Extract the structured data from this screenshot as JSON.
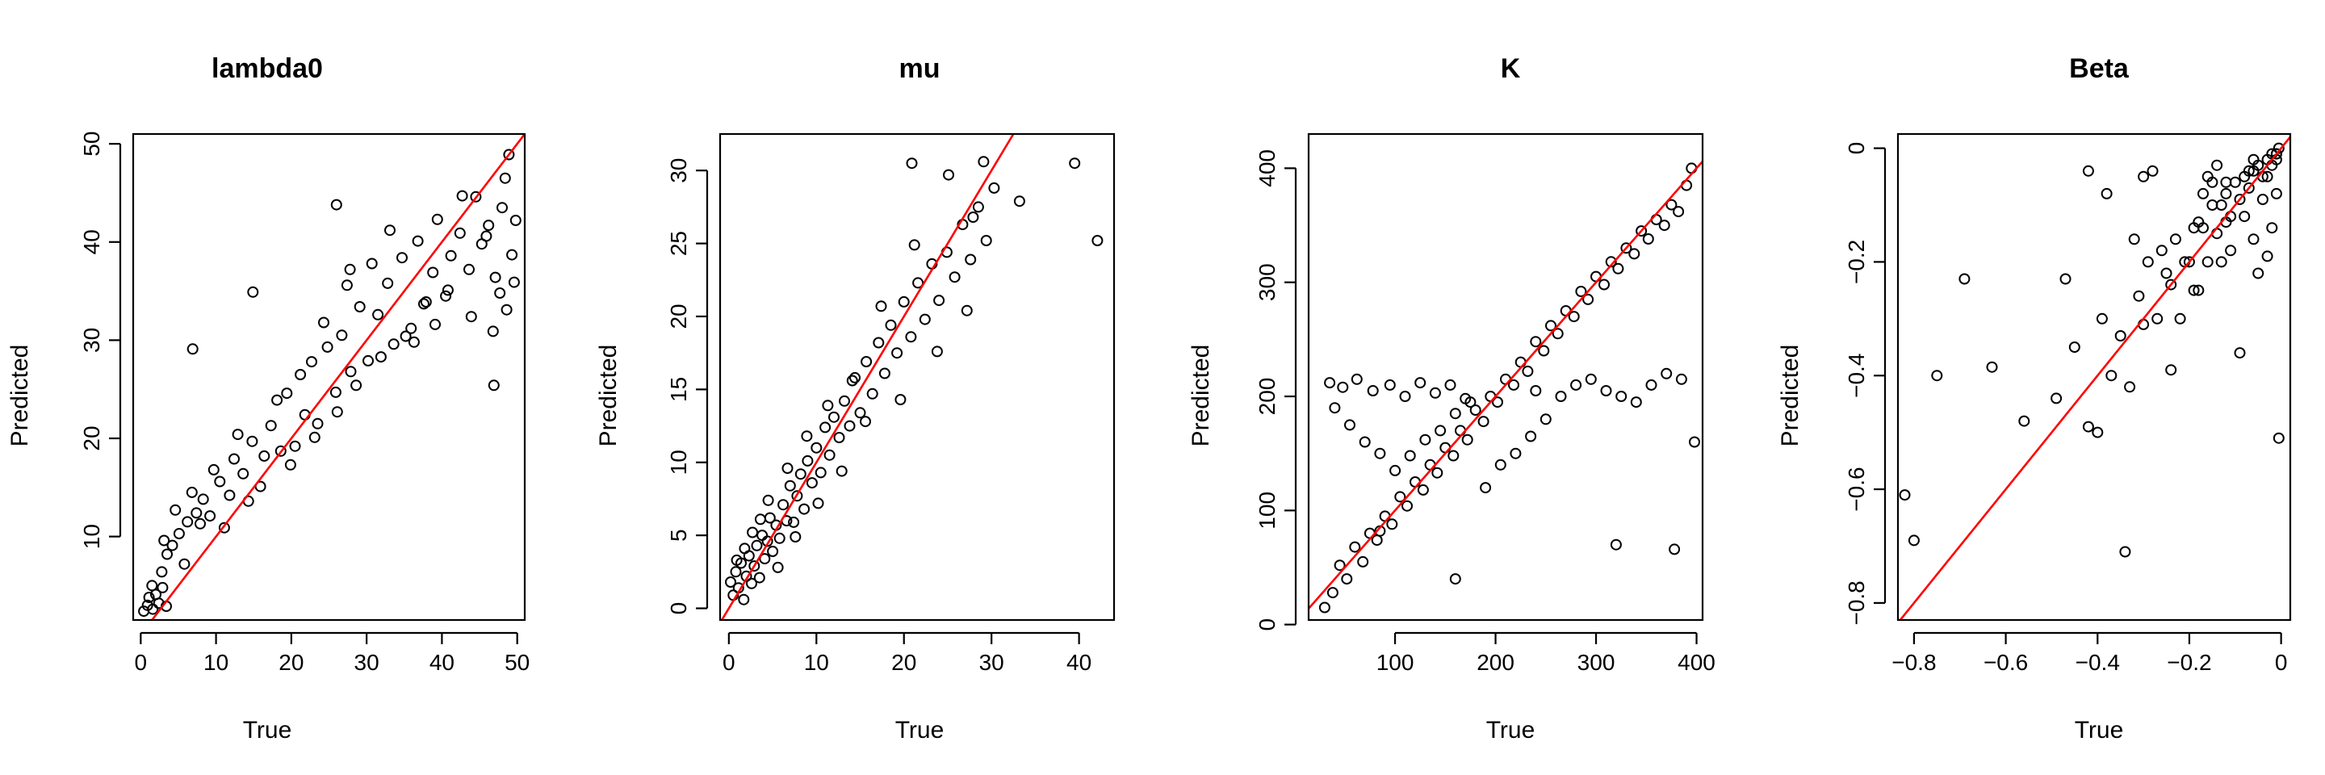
{
  "chart_data": [
    {
      "type": "scatter",
      "title": "lambda0",
      "xlabel": "True",
      "ylabel": "Predicted",
      "xlim": [
        -1,
        51
      ],
      "ylim": [
        1.5,
        51
      ],
      "xticks": [
        0,
        10,
        20,
        30,
        40,
        50
      ],
      "yticks": [
        10,
        20,
        30,
        40,
        50
      ],
      "refline": {
        "slope": 1,
        "intercept": 0,
        "color": "#ff0000"
      },
      "points": {
        "x": [
          0.4,
          0.9,
          1.1,
          1.6,
          2.0,
          2.4,
          2.9,
          3.4,
          1.5,
          2.8,
          3.5,
          4.2,
          5.1,
          6.2,
          7.4,
          5.8,
          8.3,
          9.2,
          10.5,
          11.8,
          12.4,
          13.6,
          14.8,
          15.9,
          17.3,
          18.6,
          19.4,
          20.5,
          21.8,
          22.7,
          23.5,
          24.8,
          25.9,
          26.7,
          27.9,
          29.1,
          30.2,
          31.5,
          32.8,
          33.6,
          34.7,
          35.9,
          36.8,
          37.6,
          38.8,
          39.4,
          40.5,
          41.2,
          42.4,
          43.6,
          44.5,
          45.3,
          46.2,
          47.1,
          48.0,
          48.9,
          49.3,
          49.8,
          3.1,
          4.6,
          6.8,
          7.9,
          9.7,
          11.1,
          12.9,
          14.3,
          16.4,
          18.1,
          19.9,
          21.2,
          23.1,
          24.3,
          26.1,
          27.4,
          28.6,
          30.7,
          31.9,
          33.1,
          35.2,
          36.3,
          37.9,
          39.1,
          40.8,
          42.7,
          43.9,
          45.9,
          46.8,
          47.7,
          48.6,
          49.6,
          14.9,
          26.0,
          6.9,
          27.8,
          46.9,
          48.4
        ],
        "y": [
          2.4,
          3.0,
          3.8,
          2.6,
          4.1,
          3.2,
          4.8,
          2.9,
          5.0,
          6.4,
          8.2,
          9.1,
          10.3,
          11.5,
          12.4,
          7.2,
          13.8,
          12.1,
          15.6,
          14.2,
          17.9,
          16.4,
          19.7,
          15.1,
          21.3,
          18.7,
          24.6,
          19.2,
          22.4,
          27.8,
          21.5,
          29.3,
          24.7,
          30.5,
          26.8,
          33.4,
          27.9,
          32.6,
          35.8,
          29.6,
          38.4,
          31.2,
          40.1,
          33.7,
          36.9,
          42.3,
          34.5,
          38.6,
          40.9,
          37.2,
          44.6,
          39.8,
          41.7,
          36.4,
          43.5,
          48.9,
          38.7,
          42.2,
          9.6,
          12.7,
          14.5,
          11.3,
          16.8,
          10.9,
          20.4,
          13.6,
          18.2,
          23.9,
          17.3,
          26.5,
          20.1,
          31.8,
          22.7,
          35.6,
          25.4,
          37.8,
          28.3,
          41.2,
          30.4,
          29.8,
          33.9,
          31.6,
          35.1,
          44.7,
          32.4,
          40.6,
          30.9,
          34.8,
          33.1,
          35.9,
          34.9,
          43.8,
          29.1,
          37.2,
          25.4,
          46.5
        ]
      }
    },
    {
      "type": "scatter",
      "title": "mu",
      "xlabel": "True",
      "ylabel": "Predicted",
      "xlim": [
        -1,
        44
      ],
      "ylim": [
        -0.8,
        32.5
      ],
      "xticks": [
        0,
        10,
        20,
        30,
        40
      ],
      "yticks": [
        0,
        5,
        10,
        15,
        20,
        25,
        30
      ],
      "refline": {
        "slope": 1,
        "intercept": 0,
        "color": "#ff0000"
      },
      "points": {
        "x": [
          0.2,
          0.5,
          0.8,
          1.1,
          1.4,
          1.7,
          2.0,
          2.3,
          2.6,
          2.9,
          3.2,
          3.5,
          3.8,
          4.1,
          4.4,
          4.7,
          5.0,
          5.4,
          5.8,
          6.2,
          6.6,
          7.0,
          7.4,
          7.8,
          8.2,
          8.6,
          9.0,
          9.5,
          10.0,
          10.5,
          11.0,
          11.5,
          12.0,
          12.6,
          13.2,
          13.8,
          14.4,
          15.0,
          15.7,
          16.4,
          17.1,
          17.8,
          18.5,
          19.2,
          20.0,
          20.8,
          21.6,
          22.4,
          23.2,
          24.0,
          24.9,
          25.8,
          26.7,
          27.6,
          28.5,
          29.4,
          30.3,
          0.9,
          1.8,
          2.7,
          3.6,
          4.5,
          5.6,
          6.7,
          7.6,
          8.9,
          10.2,
          11.3,
          12.9,
          14.1,
          15.6,
          17.4,
          19.6,
          21.2,
          23.8,
          25.1,
          27.2,
          29.1,
          20.9,
          27.9,
          33.2,
          39.5,
          42.1
        ],
        "y": [
          1.8,
          0.9,
          2.5,
          1.4,
          3.1,
          0.6,
          2.2,
          3.6,
          1.7,
          2.9,
          4.3,
          2.1,
          5.0,
          3.4,
          4.6,
          6.2,
          3.9,
          5.7,
          4.8,
          7.1,
          6.0,
          8.4,
          5.9,
          7.7,
          9.2,
          6.8,
          10.1,
          8.6,
          11.0,
          9.3,
          12.4,
          10.5,
          13.1,
          11.7,
          14.2,
          12.5,
          15.8,
          13.4,
          16.9,
          14.7,
          18.2,
          16.1,
          19.4,
          17.5,
          21.0,
          18.6,
          22.3,
          19.8,
          23.6,
          21.1,
          24.4,
          22.7,
          26.3,
          23.9,
          27.5,
          25.2,
          28.8,
          3.3,
          4.1,
          5.2,
          6.1,
          7.4,
          2.8,
          9.6,
          4.9,
          11.8,
          7.2,
          13.9,
          9.4,
          15.6,
          12.8,
          20.7,
          14.3,
          24.9,
          17.6,
          29.7,
          20.4,
          30.6,
          30.5,
          26.8,
          27.9,
          30.5,
          25.2
        ]
      }
    },
    {
      "type": "scatter",
      "title": "K",
      "xlabel": "True",
      "ylabel": "Predicted",
      "xlim": [
        14,
        406
      ],
      "ylim": [
        4,
        430
      ],
      "xticks": [
        100,
        200,
        300,
        400
      ],
      "yticks": [
        0,
        100,
        200,
        300,
        400
      ],
      "refline": {
        "slope": 1,
        "intercept": 0,
        "color": "#ff0000"
      },
      "points": {
        "x": [
          30,
          38,
          45,
          52,
          60,
          68,
          75,
          82,
          90,
          97,
          105,
          112,
          120,
          128,
          135,
          142,
          150,
          158,
          165,
          172,
          180,
          188,
          195,
          202,
          210,
          218,
          225,
          232,
          240,
          248,
          255,
          262,
          270,
          278,
          285,
          292,
          300,
          308,
          315,
          322,
          330,
          338,
          345,
          352,
          360,
          368,
          375,
          382,
          390,
          395,
          35,
          48,
          62,
          78,
          95,
          110,
          125,
          140,
          155,
          170,
          40,
          55,
          70,
          85,
          100,
          115,
          130,
          145,
          160,
          175,
          190,
          205,
          220,
          235,
          250,
          265,
          280,
          295,
          310,
          325,
          340,
          355,
          370,
          385,
          398,
          160,
          320,
          378,
          85,
          240
        ],
        "y": [
          15,
          28,
          52,
          40,
          68,
          55,
          80,
          74,
          95,
          88,
          112,
          104,
          125,
          118,
          140,
          133,
          155,
          148,
          170,
          162,
          188,
          178,
          200,
          195,
          215,
          210,
          230,
          222,
          248,
          240,
          262,
          255,
          275,
          270,
          292,
          285,
          305,
          298,
          318,
          312,
          330,
          325,
          345,
          338,
          355,
          350,
          368,
          362,
          385,
          400,
          212,
          208,
          215,
          205,
          210,
          200,
          212,
          203,
          210,
          198,
          190,
          175,
          160,
          150,
          135,
          148,
          162,
          170,
          185,
          195,
          120,
          140,
          150,
          165,
          180,
          200,
          210,
          215,
          205,
          200,
          195,
          210,
          220,
          215,
          160,
          40,
          70,
          66,
          82,
          205
        ]
      }
    },
    {
      "type": "scatter",
      "title": "Beta",
      "xlabel": "True",
      "ylabel": "Predicted",
      "xlim": [
        -0.835,
        0.02
      ],
      "ylim": [
        -0.83,
        0.025
      ],
      "xticks": [
        -0.8,
        -0.6,
        -0.4,
        -0.2,
        0.0
      ],
      "yticks": [
        -0.8,
        -0.6,
        -0.4,
        -0.2,
        0.0
      ],
      "refline": {
        "slope": 1,
        "intercept": 0,
        "color": "#ff0000"
      },
      "points": {
        "x": [
          -0.82,
          -0.8,
          -0.75,
          -0.69,
          -0.63,
          -0.56,
          -0.49,
          -0.47,
          -0.45,
          -0.42,
          -0.4,
          -0.39,
          -0.37,
          -0.35,
          -0.34,
          -0.33,
          -0.32,
          -0.31,
          -0.3,
          -0.29,
          -0.28,
          -0.27,
          -0.26,
          -0.25,
          -0.24,
          -0.23,
          -0.22,
          -0.21,
          -0.2,
          -0.19,
          -0.18,
          -0.17,
          -0.16,
          -0.15,
          -0.14,
          -0.13,
          -0.12,
          -0.11,
          -0.1,
          -0.09,
          -0.08,
          -0.07,
          -0.06,
          -0.05,
          -0.04,
          -0.03,
          -0.02,
          -0.01,
          -0.005,
          -0.19,
          -0.17,
          -0.15,
          -0.13,
          -0.11,
          -0.09,
          -0.07,
          -0.05,
          -0.03,
          -0.02,
          -0.01,
          -0.08,
          -0.06,
          -0.04,
          -0.12,
          -0.14,
          -0.16,
          -0.02,
          -0.01,
          -0.01,
          -0.005,
          -0.42,
          -0.38,
          -0.3,
          -0.24,
          -0.18,
          -0.12,
          -0.06,
          -0.03
        ],
        "y": [
          -0.61,
          -0.69,
          -0.4,
          -0.23,
          -0.385,
          -0.48,
          -0.44,
          -0.23,
          -0.35,
          -0.49,
          -0.5,
          -0.3,
          -0.4,
          -0.33,
          -0.71,
          -0.42,
          -0.16,
          -0.26,
          -0.05,
          -0.2,
          -0.04,
          -0.3,
          -0.18,
          -0.22,
          -0.24,
          -0.16,
          -0.3,
          -0.2,
          -0.2,
          -0.14,
          -0.13,
          -0.14,
          -0.2,
          -0.1,
          -0.15,
          -0.2,
          -0.08,
          -0.12,
          -0.06,
          -0.09,
          -0.05,
          -0.07,
          -0.04,
          -0.03,
          -0.05,
          -0.02,
          -0.03,
          -0.01,
          -0.51,
          -0.25,
          -0.08,
          -0.06,
          -0.1,
          -0.18,
          -0.36,
          -0.04,
          -0.22,
          -0.19,
          -0.01,
          -0.02,
          -0.12,
          -0.16,
          -0.09,
          -0.06,
          -0.03,
          -0.05,
          -0.14,
          -0.08,
          -0.01,
          0.0,
          -0.04,
          -0.08,
          -0.31,
          -0.39,
          -0.25,
          -0.13,
          -0.02,
          -0.05
        ]
      }
    }
  ]
}
